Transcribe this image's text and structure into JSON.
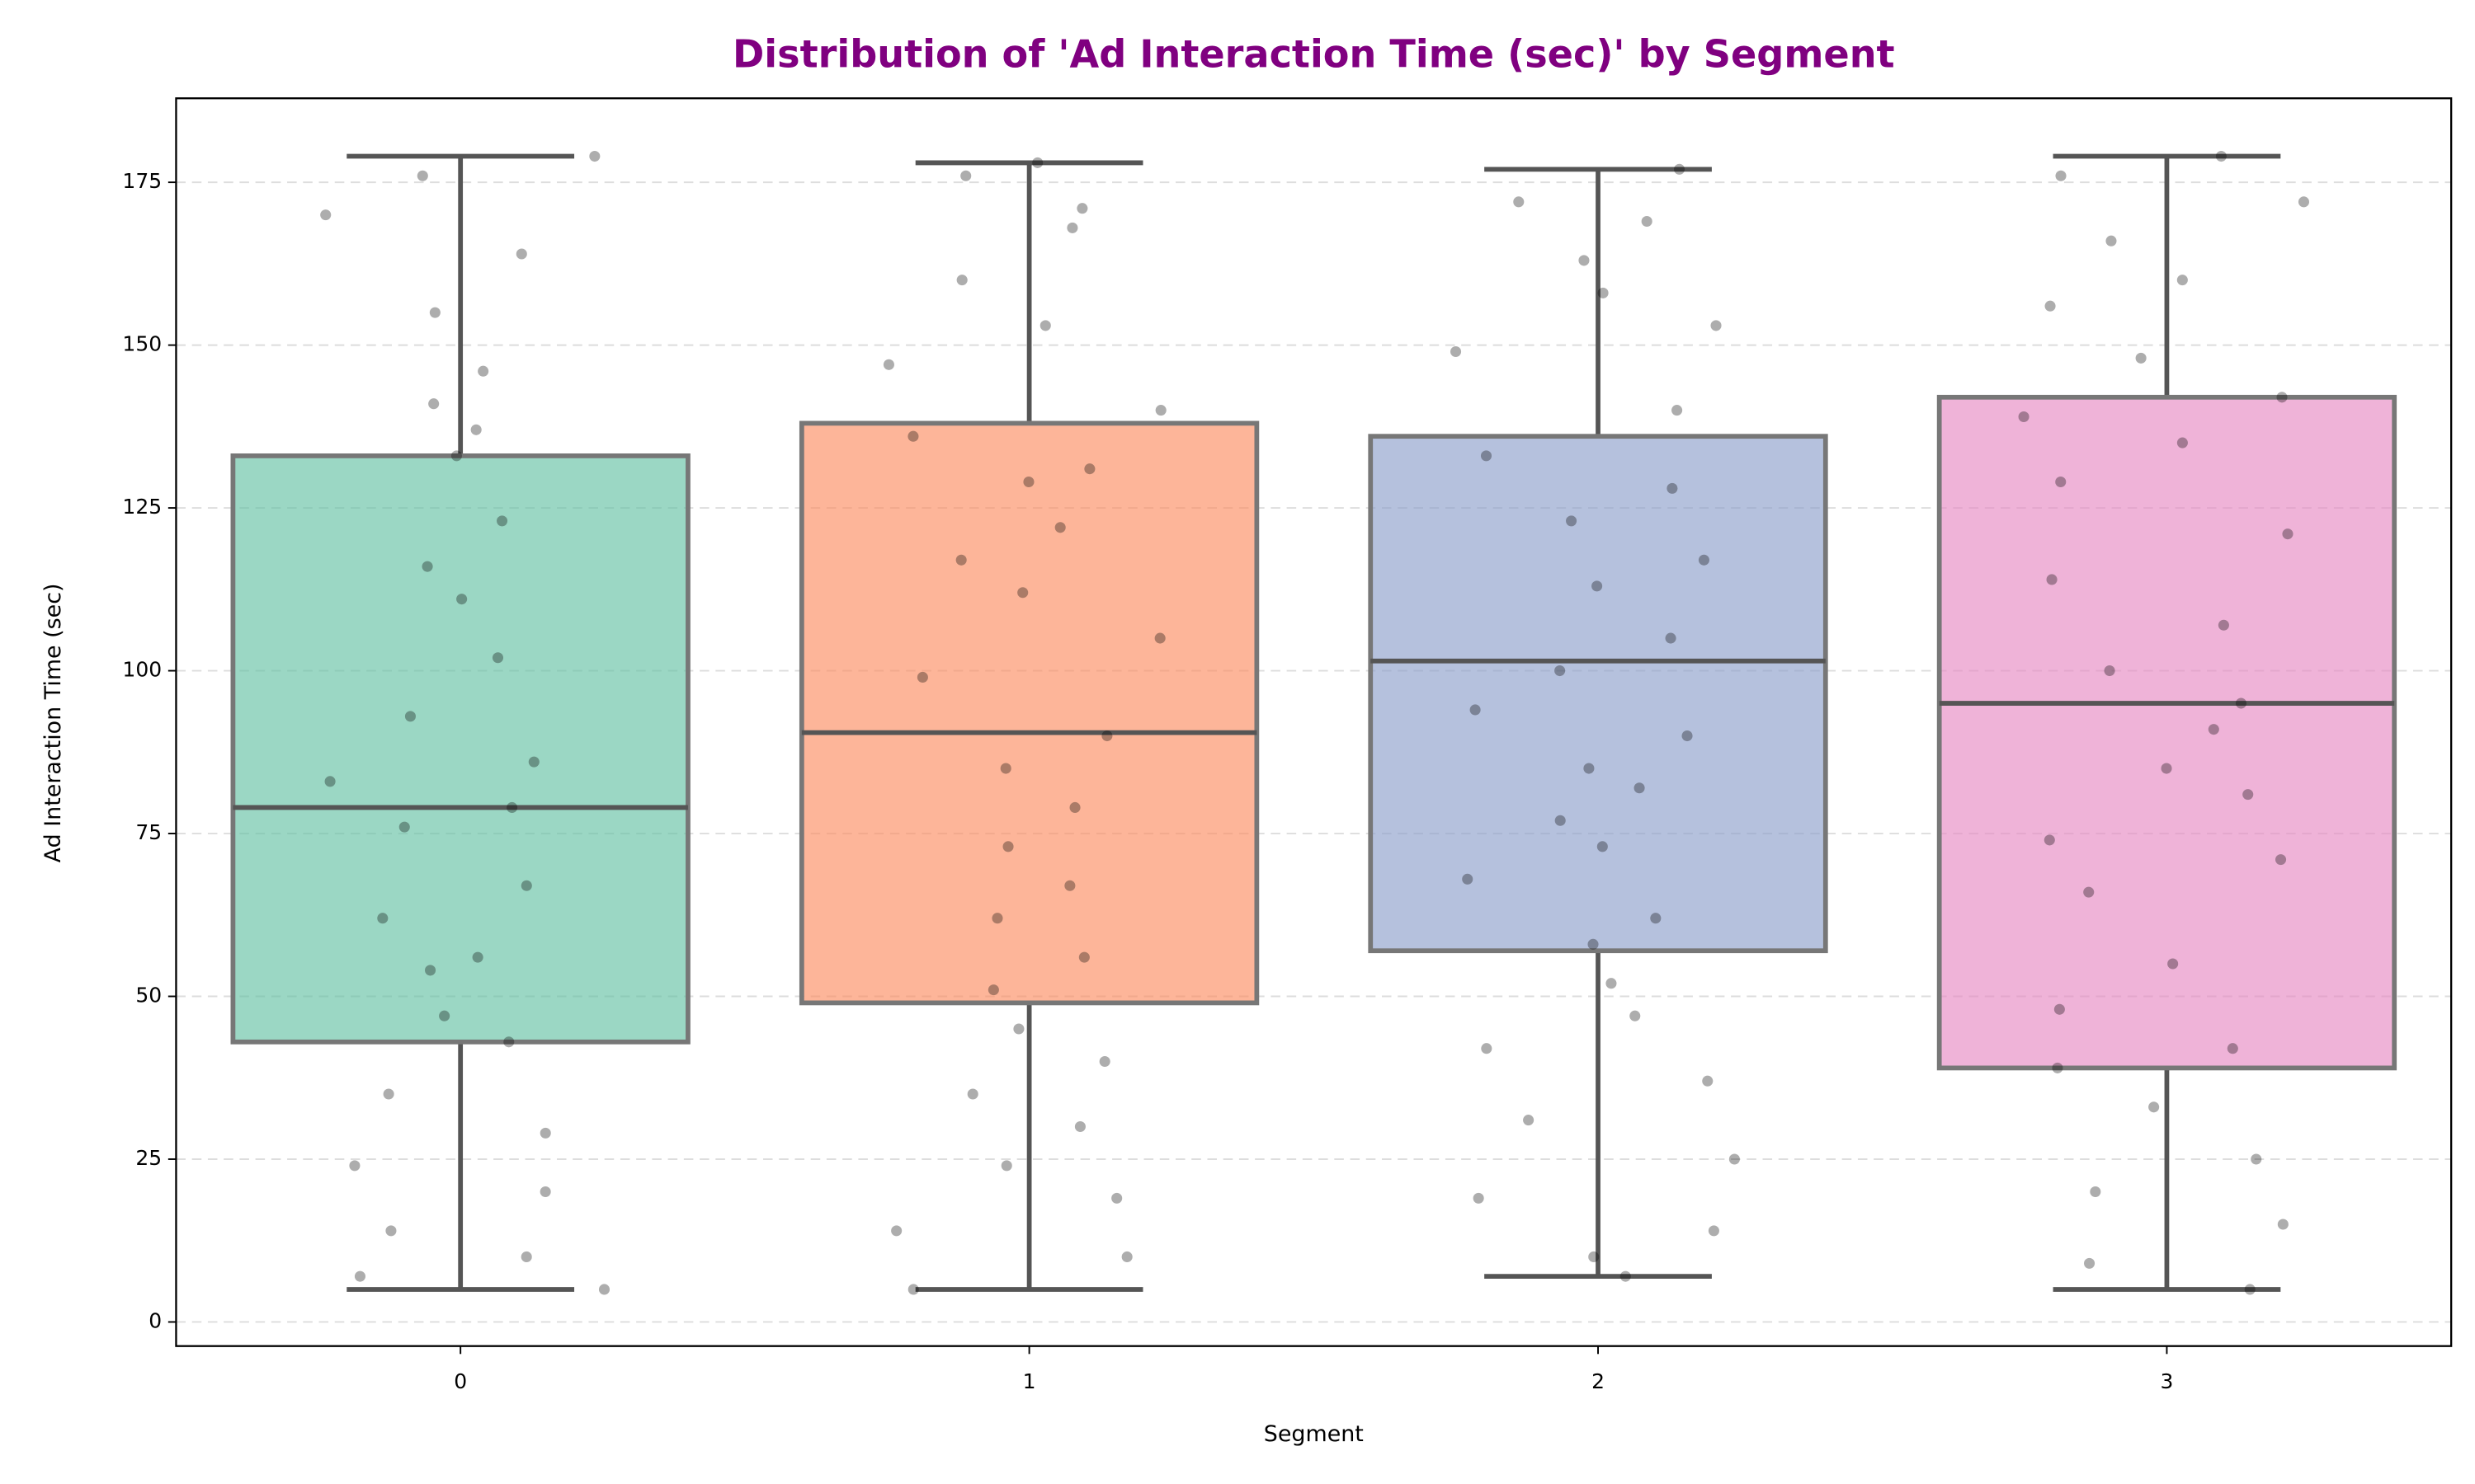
{
  "chart_data": {
    "type": "box",
    "title": "Distribution of 'Ad Interaction Time (sec)' by Segment",
    "xlabel": "Segment",
    "ylabel": "Ad Interaction Time (sec)",
    "categories": [
      "0",
      "1",
      "2",
      "3"
    ],
    "colors": [
      "#66c2a5",
      "#fc8d62",
      "#8da0cb",
      "#e78ac3"
    ],
    "ylim": [
      -3.7,
      187.9
    ],
    "yticks": [
      0,
      25,
      50,
      75,
      100,
      125,
      150,
      175
    ],
    "grid": true,
    "boxes": [
      {
        "whislo": 5,
        "q1": 43,
        "med": 79,
        "q3": 133,
        "whishi": 179,
        "points": [
          179,
          176,
          170,
          164,
          155,
          146,
          141,
          137,
          133,
          123,
          116,
          111,
          102,
          93,
          86,
          83,
          79,
          76,
          67,
          62,
          56,
          54,
          47,
          43,
          35,
          29,
          24,
          20,
          14,
          10,
          7,
          5
        ]
      },
      {
        "whislo": 5,
        "q1": 49,
        "med": 90.5,
        "q3": 138,
        "whishi": 178,
        "points": [
          178,
          176,
          171,
          168,
          160,
          153,
          147,
          140,
          136,
          131,
          129,
          122,
          117,
          112,
          105,
          99,
          90,
          85,
          79,
          73,
          67,
          62,
          56,
          51,
          45,
          40,
          35,
          30,
          24,
          19,
          14,
          10,
          5
        ]
      },
      {
        "whislo": 7,
        "q1": 57,
        "med": 101.5,
        "q3": 136,
        "whishi": 177,
        "points": [
          177,
          172,
          169,
          163,
          158,
          153,
          149,
          140,
          133,
          128,
          123,
          117,
          113,
          105,
          100,
          94,
          90,
          85,
          82,
          77,
          73,
          68,
          62,
          58,
          52,
          47,
          42,
          37,
          31,
          25,
          19,
          14,
          10,
          7
        ]
      },
      {
        "whislo": 5,
        "q1": 39,
        "med": 95,
        "q3": 142,
        "whishi": 179,
        "points": [
          179,
          176,
          172,
          166,
          160,
          156,
          148,
          142,
          139,
          135,
          129,
          121,
          114,
          107,
          100,
          95,
          91,
          85,
          81,
          74,
          71,
          66,
          55,
          48,
          42,
          39,
          33,
          25,
          20,
          15,
          9,
          5
        ]
      }
    ]
  }
}
